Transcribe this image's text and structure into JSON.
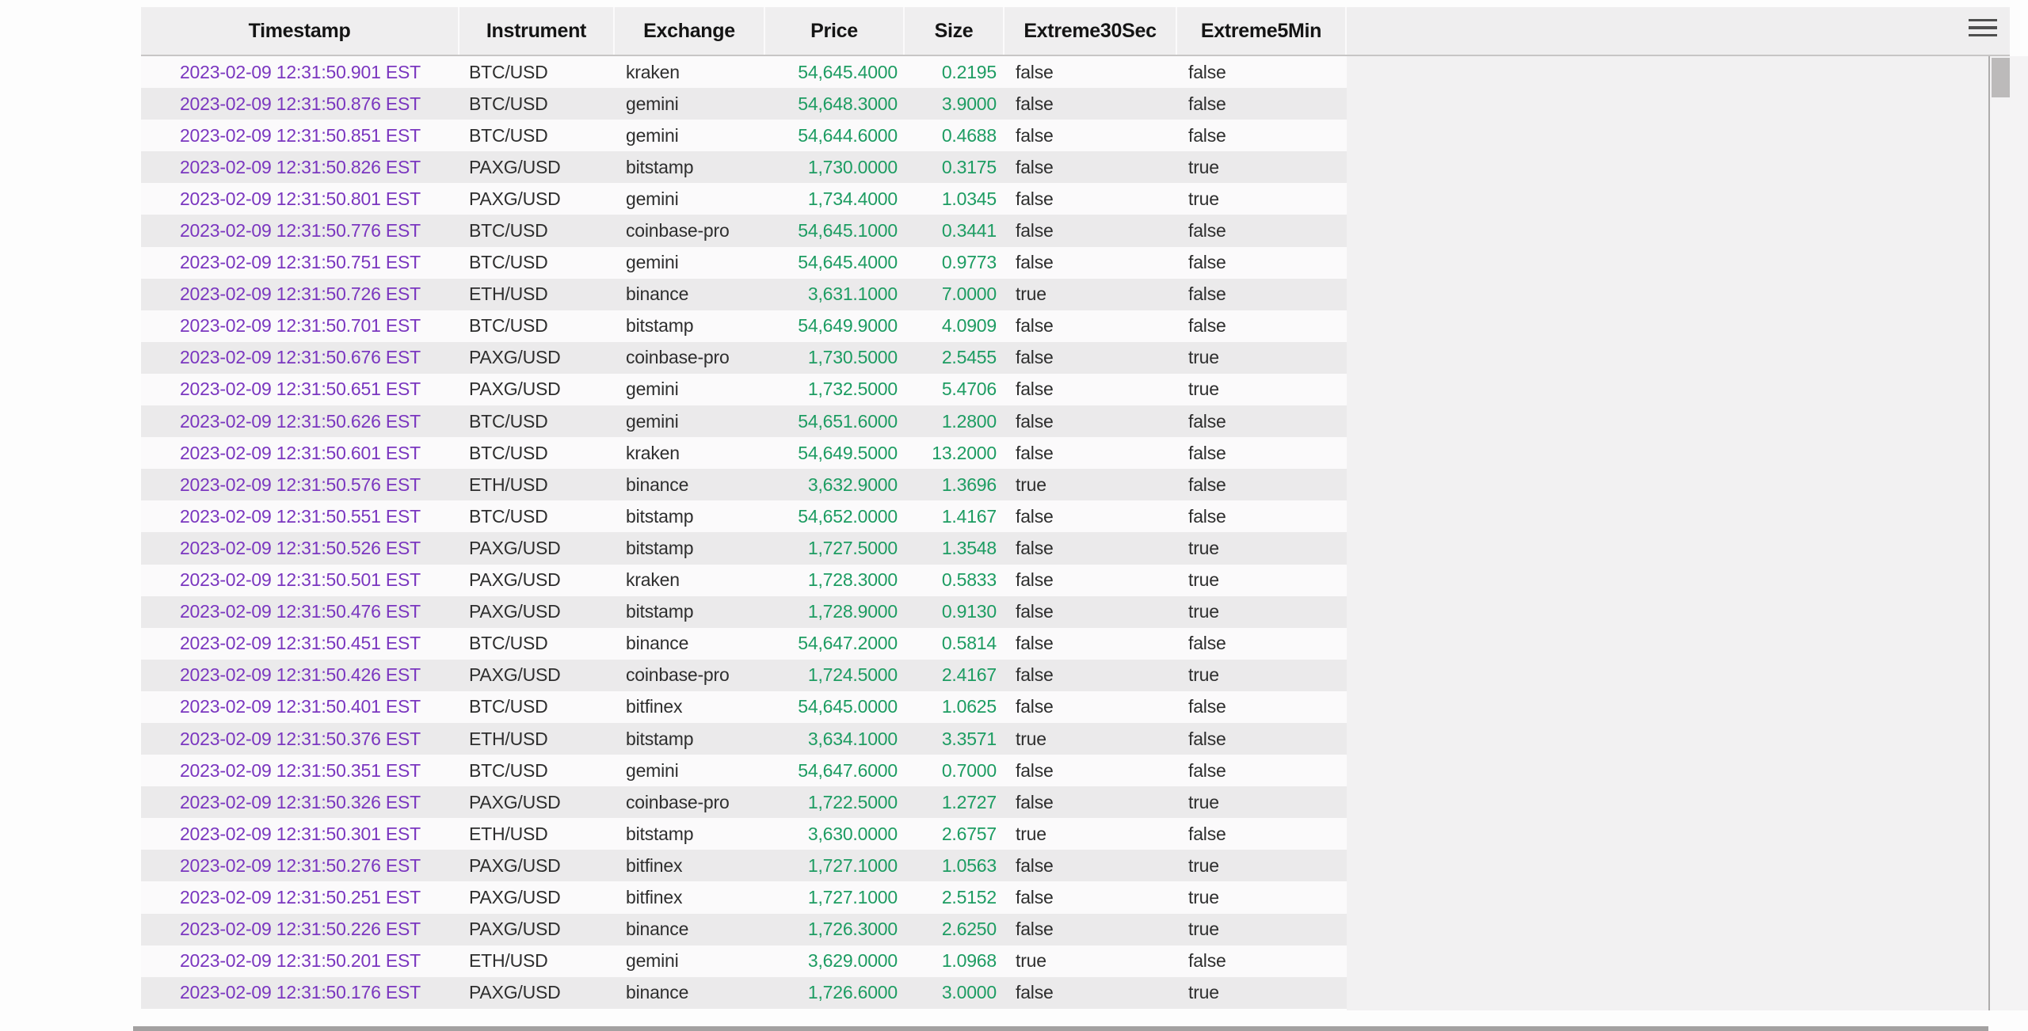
{
  "header": {
    "columns": [
      {
        "label": "Timestamp"
      },
      {
        "label": "Instrument"
      },
      {
        "label": "Exchange"
      },
      {
        "label": "Price"
      },
      {
        "label": "Size"
      },
      {
        "label": "Extreme30Sec"
      },
      {
        "label": "Extreme5Min"
      }
    ]
  },
  "menu": {
    "icon": "hamburger-menu-icon"
  },
  "rows": [
    {
      "timestamp": "2023-02-09 12:31:50.901 EST",
      "instrument": "BTC/USD",
      "exchange": "kraken",
      "price": "54,645.4000",
      "size": "0.2195",
      "extreme30sec": "false",
      "extreme5min": "false"
    },
    {
      "timestamp": "2023-02-09 12:31:50.876 EST",
      "instrument": "BTC/USD",
      "exchange": "gemini",
      "price": "54,648.3000",
      "size": "3.9000",
      "extreme30sec": "false",
      "extreme5min": "false"
    },
    {
      "timestamp": "2023-02-09 12:31:50.851 EST",
      "instrument": "BTC/USD",
      "exchange": "gemini",
      "price": "54,644.6000",
      "size": "0.4688",
      "extreme30sec": "false",
      "extreme5min": "false"
    },
    {
      "timestamp": "2023-02-09 12:31:50.826 EST",
      "instrument": "PAXG/USD",
      "exchange": "bitstamp",
      "price": "1,730.0000",
      "size": "0.3175",
      "extreme30sec": "false",
      "extreme5min": "true"
    },
    {
      "timestamp": "2023-02-09 12:31:50.801 EST",
      "instrument": "PAXG/USD",
      "exchange": "gemini",
      "price": "1,734.4000",
      "size": "1.0345",
      "extreme30sec": "false",
      "extreme5min": "true"
    },
    {
      "timestamp": "2023-02-09 12:31:50.776 EST",
      "instrument": "BTC/USD",
      "exchange": "coinbase-pro",
      "price": "54,645.1000",
      "size": "0.3441",
      "extreme30sec": "false",
      "extreme5min": "false"
    },
    {
      "timestamp": "2023-02-09 12:31:50.751 EST",
      "instrument": "BTC/USD",
      "exchange": "gemini",
      "price": "54,645.4000",
      "size": "0.9773",
      "extreme30sec": "false",
      "extreme5min": "false"
    },
    {
      "timestamp": "2023-02-09 12:31:50.726 EST",
      "instrument": "ETH/USD",
      "exchange": "binance",
      "price": "3,631.1000",
      "size": "7.0000",
      "extreme30sec": "true",
      "extreme5min": "false"
    },
    {
      "timestamp": "2023-02-09 12:31:50.701 EST",
      "instrument": "BTC/USD",
      "exchange": "bitstamp",
      "price": "54,649.9000",
      "size": "4.0909",
      "extreme30sec": "false",
      "extreme5min": "false"
    },
    {
      "timestamp": "2023-02-09 12:31:50.676 EST",
      "instrument": "PAXG/USD",
      "exchange": "coinbase-pro",
      "price": "1,730.5000",
      "size": "2.5455",
      "extreme30sec": "false",
      "extreme5min": "true"
    },
    {
      "timestamp": "2023-02-09 12:31:50.651 EST",
      "instrument": "PAXG/USD",
      "exchange": "gemini",
      "price": "1,732.5000",
      "size": "5.4706",
      "extreme30sec": "false",
      "extreme5min": "true"
    },
    {
      "timestamp": "2023-02-09 12:31:50.626 EST",
      "instrument": "BTC/USD",
      "exchange": "gemini",
      "price": "54,651.6000",
      "size": "1.2800",
      "extreme30sec": "false",
      "extreme5min": "false"
    },
    {
      "timestamp": "2023-02-09 12:31:50.601 EST",
      "instrument": "BTC/USD",
      "exchange": "kraken",
      "price": "54,649.5000",
      "size": "13.2000",
      "extreme30sec": "false",
      "extreme5min": "false"
    },
    {
      "timestamp": "2023-02-09 12:31:50.576 EST",
      "instrument": "ETH/USD",
      "exchange": "binance",
      "price": "3,632.9000",
      "size": "1.3696",
      "extreme30sec": "true",
      "extreme5min": "false"
    },
    {
      "timestamp": "2023-02-09 12:31:50.551 EST",
      "instrument": "BTC/USD",
      "exchange": "bitstamp",
      "price": "54,652.0000",
      "size": "1.4167",
      "extreme30sec": "false",
      "extreme5min": "false"
    },
    {
      "timestamp": "2023-02-09 12:31:50.526 EST",
      "instrument": "PAXG/USD",
      "exchange": "bitstamp",
      "price": "1,727.5000",
      "size": "1.3548",
      "extreme30sec": "false",
      "extreme5min": "true"
    },
    {
      "timestamp": "2023-02-09 12:31:50.501 EST",
      "instrument": "PAXG/USD",
      "exchange": "kraken",
      "price": "1,728.3000",
      "size": "0.5833",
      "extreme30sec": "false",
      "extreme5min": "true"
    },
    {
      "timestamp": "2023-02-09 12:31:50.476 EST",
      "instrument": "PAXG/USD",
      "exchange": "bitstamp",
      "price": "1,728.9000",
      "size": "0.9130",
      "extreme30sec": "false",
      "extreme5min": "true"
    },
    {
      "timestamp": "2023-02-09 12:31:50.451 EST",
      "instrument": "BTC/USD",
      "exchange": "binance",
      "price": "54,647.2000",
      "size": "0.5814",
      "extreme30sec": "false",
      "extreme5min": "false"
    },
    {
      "timestamp": "2023-02-09 12:31:50.426 EST",
      "instrument": "PAXG/USD",
      "exchange": "coinbase-pro",
      "price": "1,724.5000",
      "size": "2.4167",
      "extreme30sec": "false",
      "extreme5min": "true"
    },
    {
      "timestamp": "2023-02-09 12:31:50.401 EST",
      "instrument": "BTC/USD",
      "exchange": "bitfinex",
      "price": "54,645.0000",
      "size": "1.0625",
      "extreme30sec": "false",
      "extreme5min": "false"
    },
    {
      "timestamp": "2023-02-09 12:31:50.376 EST",
      "instrument": "ETH/USD",
      "exchange": "bitstamp",
      "price": "3,634.1000",
      "size": "3.3571",
      "extreme30sec": "true",
      "extreme5min": "false"
    },
    {
      "timestamp": "2023-02-09 12:31:50.351 EST",
      "instrument": "BTC/USD",
      "exchange": "gemini",
      "price": "54,647.6000",
      "size": "0.7000",
      "extreme30sec": "false",
      "extreme5min": "false"
    },
    {
      "timestamp": "2023-02-09 12:31:50.326 EST",
      "instrument": "PAXG/USD",
      "exchange": "coinbase-pro",
      "price": "1,722.5000",
      "size": "1.2727",
      "extreme30sec": "false",
      "extreme5min": "true"
    },
    {
      "timestamp": "2023-02-09 12:31:50.301 EST",
      "instrument": "ETH/USD",
      "exchange": "bitstamp",
      "price": "3,630.0000",
      "size": "2.6757",
      "extreme30sec": "true",
      "extreme5min": "false"
    },
    {
      "timestamp": "2023-02-09 12:31:50.276 EST",
      "instrument": "PAXG/USD",
      "exchange": "bitfinex",
      "price": "1,727.1000",
      "size": "1.0563",
      "extreme30sec": "false",
      "extreme5min": "true"
    },
    {
      "timestamp": "2023-02-09 12:31:50.251 EST",
      "instrument": "PAXG/USD",
      "exchange": "bitfinex",
      "price": "1,727.1000",
      "size": "2.5152",
      "extreme30sec": "false",
      "extreme5min": "true"
    },
    {
      "timestamp": "2023-02-09 12:31:50.226 EST",
      "instrument": "PAXG/USD",
      "exchange": "binance",
      "price": "1,726.3000",
      "size": "2.6250",
      "extreme30sec": "false",
      "extreme5min": "true"
    },
    {
      "timestamp": "2023-02-09 12:31:50.201 EST",
      "instrument": "ETH/USD",
      "exchange": "gemini",
      "price": "3,629.0000",
      "size": "1.0968",
      "extreme30sec": "true",
      "extreme5min": "false"
    },
    {
      "timestamp": "2023-02-09 12:31:50.176 EST",
      "instrument": "PAXG/USD",
      "exchange": "binance",
      "price": "1,726.6000",
      "size": "3.0000",
      "extreme30sec": "false",
      "extreme5min": "true"
    }
  ],
  "colors": {
    "timestamp_text": "#7a36bf",
    "numeric_text": "#1d9c62",
    "body_text": "#2e2e2e",
    "header_bg": "#efeeef",
    "row_stripe": "#ebeaeb",
    "scrollbar_thumb": "#bcbaba"
  }
}
